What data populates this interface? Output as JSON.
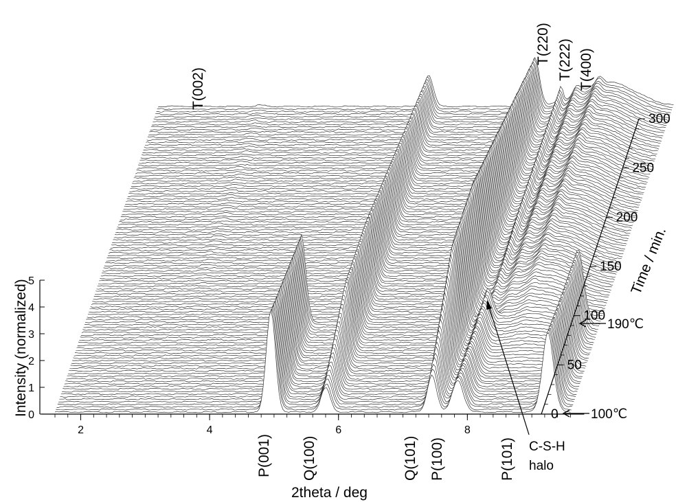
{
  "chart_data": {
    "type": "waterfall",
    "x_axis": {
      "label": "2theta / deg",
      "ticks": [
        "2",
        "4",
        "6",
        "8"
      ],
      "range": [
        1.6,
        9.6
      ]
    },
    "y_axis": {
      "label": "Intensity (normalized)",
      "ticks": [
        "0",
        "1",
        "2",
        "3",
        "4",
        "5"
      ],
      "range": [
        0,
        5
      ]
    },
    "z_axis": {
      "label": "Time / min.",
      "ticks": [
        "0",
        "50",
        "100",
        "150",
        "200",
        "250",
        "300"
      ],
      "range": [
        0,
        300
      ]
    },
    "temperature_markers": [
      {
        "label": "100℃",
        "time": 0
      },
      {
        "label": "190℃",
        "time": 90
      }
    ],
    "peaks_front": [
      {
        "label": "P(001)",
        "two_theta": 4.95,
        "height": 3.8,
        "time_end": 90
      },
      {
        "label": "Q(100)",
        "two_theta": 5.8,
        "height": 2.6,
        "time_end": 300
      },
      {
        "label": "Q(101)",
        "two_theta": 7.45,
        "height": 4.0,
        "time_end": 300
      },
      {
        "label": "P(100)",
        "two_theta": 7.85,
        "height": 1.2,
        "time_end": 90
      },
      {
        "label": "P(101)",
        "two_theta": 9.25,
        "height": 3.0,
        "time_end": 90
      }
    ],
    "peaks_back": [
      {
        "label": "T(002)",
        "two_theta": 3.2
      },
      {
        "label": "T(220)",
        "two_theta": 7.85
      },
      {
        "label": "T(222)",
        "two_theta": 8.1
      },
      {
        "label": "T(400)",
        "two_theta": 8.45
      }
    ],
    "annotation": {
      "line1": "C-S-H",
      "line2": "halo"
    },
    "scans": 120
  }
}
